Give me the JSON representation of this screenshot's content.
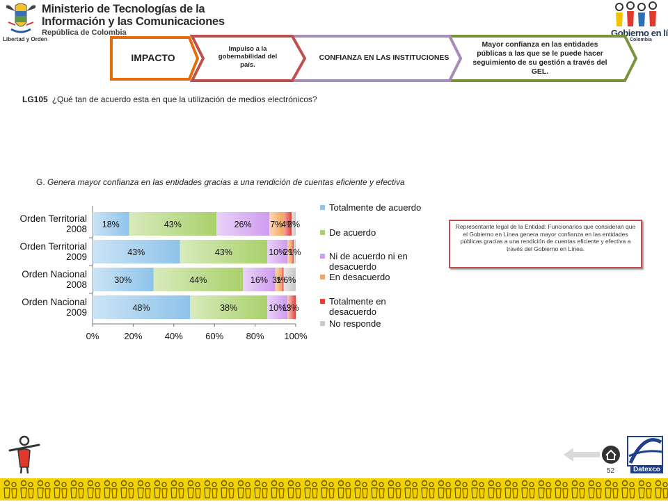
{
  "header": {
    "ministry_line1": "Ministerio de Tecnologías de la",
    "ministry_line2": "Información y las Comunicaciones",
    "ministry_line3": "República de Colombia",
    "motto": "Libertad y Orden",
    "gel_logo_text": "Gobierno en línea",
    "gel_logo_country": "Colombia"
  },
  "banner": {
    "step1": "IMPACTO",
    "step2": "Impulso a la gobernabilidad del país.",
    "step3": "CONFIANZA EN LAS INSTITUCIONES",
    "step4": "Mayor confianza en las entidades públicas a las que se le puede hacer seguimiento de su gestión a través del GEL."
  },
  "question": {
    "code": "LG105",
    "text": "¿Qué  tan de acuerdo esta en que la utilización de medios electrónicos?",
    "subquestion_letter": "G.",
    "subquestion_text": "Genera mayor confianza en las entidades gracias a una rendición de cuentas eficiente y efectiva"
  },
  "note": "Representante legal de la Entidad: Funcionarios que consideran que el Gobierno en Línea genera mayor confianza en las entidades públicas gracias a una rendición de cuentas eficiente y efectiva a través del Gobierno en Línea.",
  "footer": {
    "page_number": "52",
    "datexco": "Datexco"
  },
  "colors": {
    "banner_impacto": "#e46c0a",
    "banner_step2": "#c0504d",
    "banner_step3": "#a78bb8",
    "banner_step4": "#77933c",
    "note_border": "#c0504d",
    "bottom_strip": "#f2d200"
  },
  "chart_data": {
    "type": "bar",
    "orientation": "horizontal",
    "stacked": "100%",
    "categories": [
      [
        "Orden Territorial",
        "2008"
      ],
      [
        "Orden Territorial",
        "2009"
      ],
      [
        "Orden Nacional",
        "2008"
      ],
      [
        "Orden Nacional",
        "2009"
      ]
    ],
    "series": [
      {
        "name": "Totalmente  de acuerdo",
        "color": "#8ec3ea",
        "values": [
          18,
          43,
          30,
          48
        ],
        "labels": [
          "18%",
          "43%",
          "30%",
          "48%"
        ]
      },
      {
        "name": "De acuerdo",
        "color": "#a9d16b",
        "values": [
          43,
          43,
          44,
          38
        ],
        "labels": [
          "43%",
          "43%",
          "44%",
          "38%"
        ]
      },
      {
        "name": "Ni de acuerdo  ni en desacuerdo",
        "color": "#cf9cf0",
        "values": [
          26,
          10,
          16,
          10
        ],
        "labels": [
          "26%",
          "10%",
          "16%",
          "10%"
        ]
      },
      {
        "name": "En desacuerdo",
        "color": "#f5a65b",
        "values": [
          7,
          2,
          3,
          1
        ],
        "labels": [
          "7%",
          "2%",
          "3%",
          "1%"
        ]
      },
      {
        "name": "Totalmente en desacuerdo",
        "color": "#e0403a",
        "values": [
          4,
          1,
          1,
          3
        ],
        "labels": [
          "4%",
          "",
          "1%",
          "3%"
        ]
      },
      {
        "name": "No responde",
        "color": "#c8c8c8",
        "values": [
          2,
          1,
          6,
          0
        ],
        "labels": [
          "2%",
          "1%",
          "6%",
          ""
        ]
      }
    ],
    "x_ticks": [
      "0%",
      "20%",
      "40%",
      "60%",
      "80%",
      "100%"
    ],
    "xlim": [
      0,
      100
    ],
    "grid": false,
    "legend_position": "right"
  }
}
